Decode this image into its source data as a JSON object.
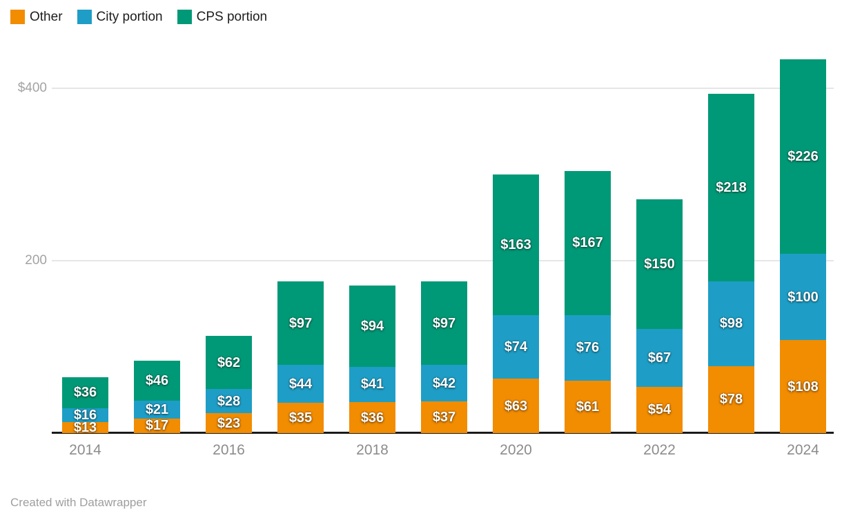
{
  "legend": {
    "items": [
      {
        "label": "Other",
        "color": "#F28C00"
      },
      {
        "label": "City portion",
        "color": "#1E9EC6"
      },
      {
        "label": "CPS portion",
        "color": "#009977"
      }
    ]
  },
  "chart_data": {
    "type": "bar",
    "stacked": true,
    "title": "",
    "xlabel": "",
    "ylabel": "",
    "categories": [
      "2014",
      "2015",
      "2016",
      "2017",
      "2018",
      "2019",
      "2020",
      "2021",
      "2022",
      "2023",
      "2024"
    ],
    "series": [
      {
        "name": "Other",
        "color": "#F28C00",
        "values": [
          13,
          17,
          23,
          35,
          36,
          37,
          63,
          61,
          54,
          78,
          108
        ]
      },
      {
        "name": "City portion",
        "color": "#1E9EC6",
        "values": [
          16,
          21,
          28,
          44,
          41,
          42,
          74,
          76,
          67,
          98,
          100
        ]
      },
      {
        "name": "CPS portion",
        "color": "#009977",
        "values": [
          36,
          46,
          62,
          97,
          94,
          97,
          163,
          167,
          150,
          218,
          226
        ]
      }
    ],
    "totals": [
      65,
      84,
      113,
      176,
      171,
      176,
      300,
      304,
      271,
      394,
      434
    ],
    "value_prefix": "$",
    "data_label_format": "$ + value, white bold inside each segment",
    "y_ticks": [
      {
        "label": "$400",
        "value": 400
      },
      {
        "label": "200",
        "value": 200
      }
    ],
    "ylim": [
      0,
      448
    ],
    "grid": "horizontal gridlines at labeled ticks only",
    "legend_position": "top-left",
    "x_tick_indices": [
      0,
      2,
      4,
      6,
      8,
      10
    ],
    "x_tick_labels": [
      "2014",
      "2016",
      "2018",
      "2020",
      "2022",
      "2024"
    ]
  },
  "footer": {
    "credit": "Created with Datawrapper"
  }
}
